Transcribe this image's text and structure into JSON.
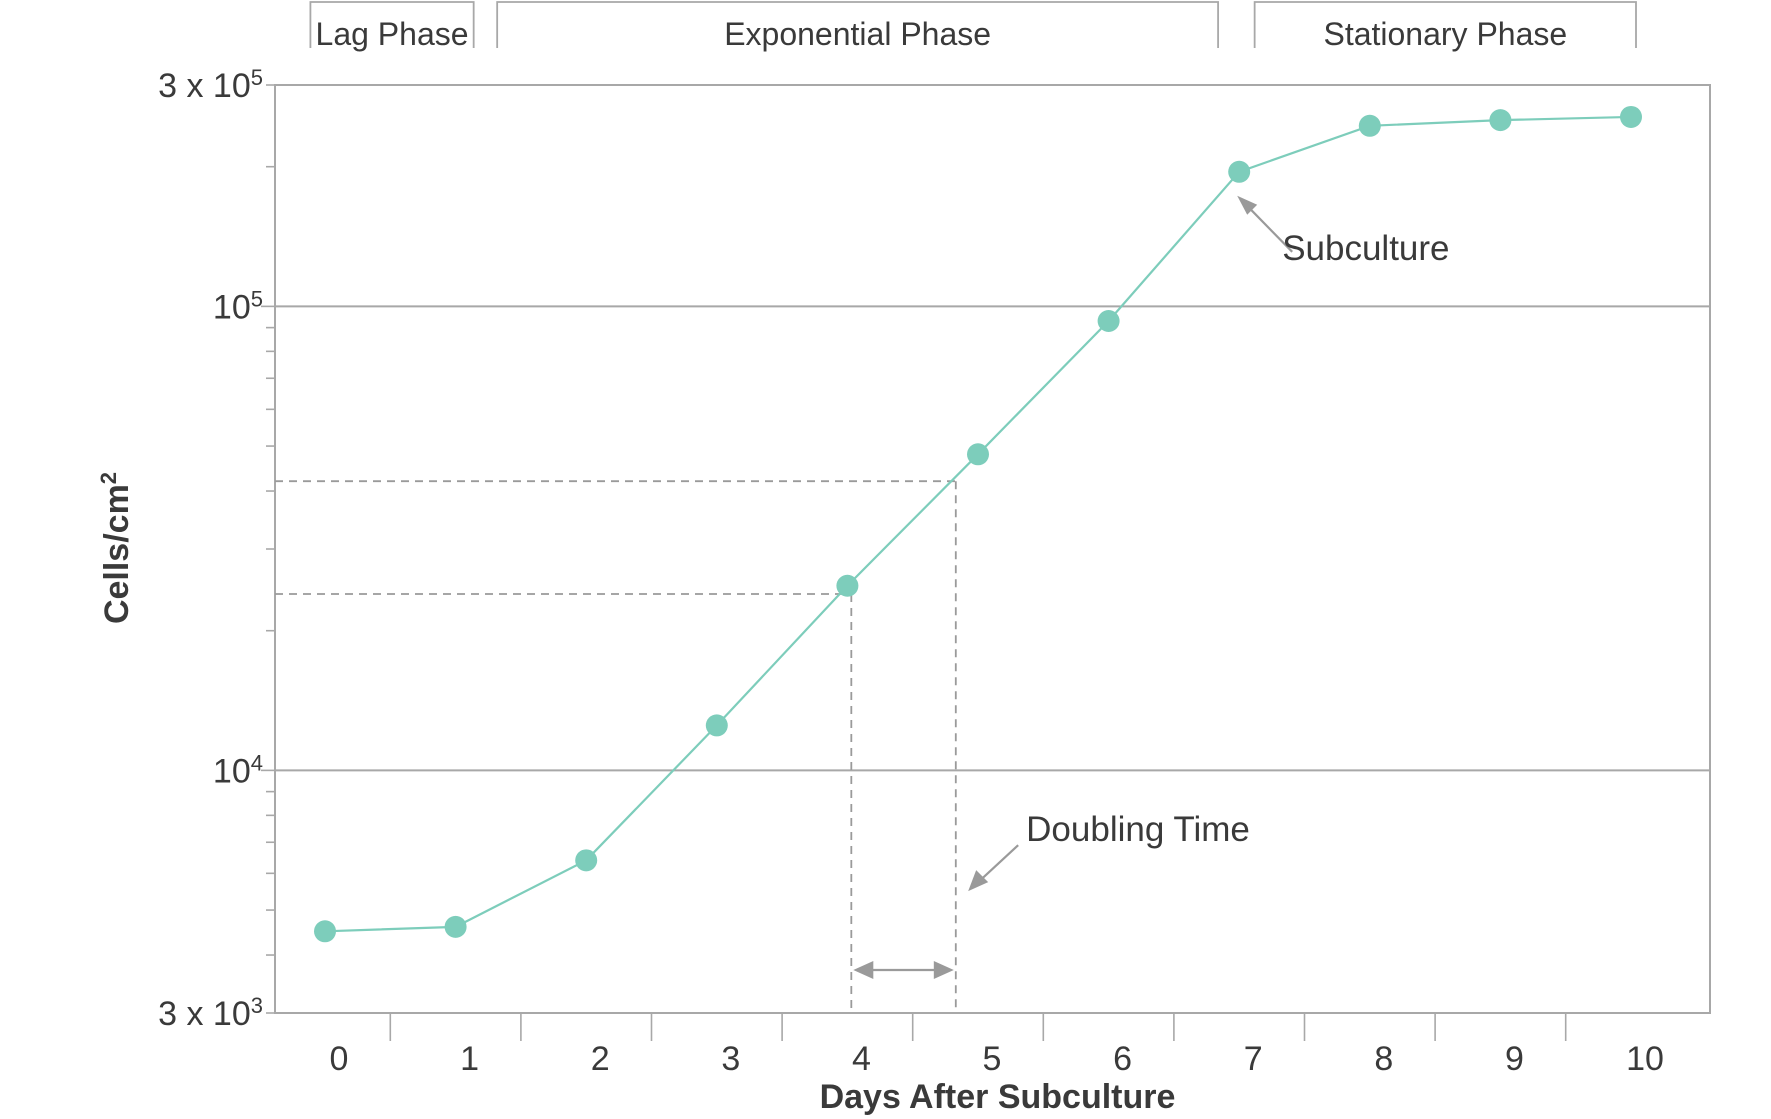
{
  "chart_data": {
    "type": "line",
    "xlabel": "Days After Subculture",
    "ylabel": "Cells/cm",
    "ylabel_superscript": "2",
    "y_scale": "log",
    "ylim": [
      3000,
      300000
    ],
    "xlim": [
      0,
      10
    ],
    "x": [
      0,
      1,
      2,
      3,
      4,
      5,
      6,
      7,
      8,
      9,
      10
    ],
    "x_tick_labels": [
      "0",
      "1",
      "2",
      "3",
      "4",
      "5",
      "6",
      "7",
      "8",
      "9",
      "10"
    ],
    "y_tick_labels": [
      {
        "value": 3000,
        "base": "3 x 10",
        "exp": "3"
      },
      {
        "value": 10000,
        "base": "10",
        "exp": "4"
      },
      {
        "value": 100000,
        "base": "10",
        "exp": "5"
      },
      {
        "value": 300000,
        "base": "3 x 10",
        "exp": "5"
      }
    ],
    "series": [
      {
        "values": [
          4500,
          4600,
          6400,
          12500,
          25000,
          48000,
          93000,
          195000,
          245000,
          252000,
          256000
        ],
        "color": "#7dcdbb"
      }
    ],
    "phases": [
      {
        "label": "Lag Phase",
        "x_start": -0.15,
        "x_end": 1.1
      },
      {
        "label": "Exponential Phase",
        "x_start": 1.28,
        "x_end": 6.8
      },
      {
        "label": "Stationary Phase",
        "x_start": 7.08,
        "x_end": 10.0
      }
    ],
    "doubling_time": {
      "x1": 4.03,
      "x2": 4.83,
      "y1": 24000,
      "y2": 42000
    },
    "annotations": [
      {
        "label": "Subculture",
        "x": 7,
        "y": 195000
      },
      {
        "label": "Doubling Time",
        "x": 4.45,
        "y": 4900
      }
    ],
    "grid_lines_y": [
      10000,
      100000
    ],
    "colors": {
      "line": "#7dcdbb",
      "frame": "#a8a8a8",
      "dashed": "#9a9a9a",
      "text": "#3a3a3a"
    }
  }
}
